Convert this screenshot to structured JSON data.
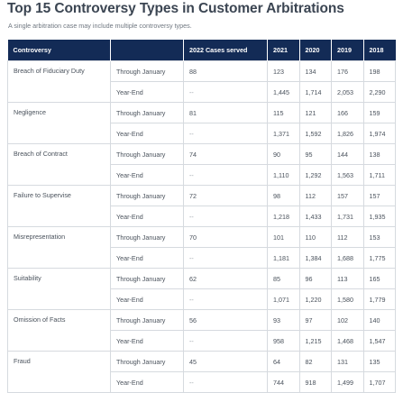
{
  "title": "Top 15 Controversy Types in Customer Arbitrations",
  "subtitle": "A single arbitration case may include multiple controversy types.",
  "table": {
    "headers": [
      "Controversy",
      "",
      "2022 Cases served",
      "2021",
      "2020",
      "2019",
      "2018"
    ],
    "rows": [
      {
        "controversy": "Breach of Fiduciary Duty",
        "periods": [
          {
            "label": "Through January",
            "cases": "88",
            "values": [
              "123",
              "134",
              "176",
              "198"
            ]
          },
          {
            "label": "Year-End",
            "cases": "--",
            "values": [
              "1,445",
              "1,714",
              "2,053",
              "2,290"
            ]
          }
        ]
      },
      {
        "controversy": "Negligence",
        "periods": [
          {
            "label": "Through January",
            "cases": "81",
            "values": [
              "115",
              "121",
              "166",
              "159"
            ]
          },
          {
            "label": "Year-End",
            "cases": "--",
            "values": [
              "1,371",
              "1,592",
              "1,826",
              "1,974"
            ]
          }
        ]
      },
      {
        "controversy": "Breach of Contract",
        "periods": [
          {
            "label": "Through January",
            "cases": "74",
            "values": [
              "90",
              "95",
              "144",
              "138"
            ]
          },
          {
            "label": "Year-End",
            "cases": "--",
            "values": [
              "1,110",
              "1,292",
              "1,563",
              "1,711"
            ]
          }
        ]
      },
      {
        "controversy": "Failure to Supervise",
        "periods": [
          {
            "label": "Through January",
            "cases": "72",
            "values": [
              "98",
              "112",
              "157",
              "157"
            ]
          },
          {
            "label": "Year-End",
            "cases": "--",
            "values": [
              "1,218",
              "1,433",
              "1,731",
              "1,935"
            ]
          }
        ]
      },
      {
        "controversy": "Misrepresentation",
        "periods": [
          {
            "label": "Through January",
            "cases": "70",
            "values": [
              "101",
              "110",
              "112",
              "153"
            ]
          },
          {
            "label": "Year-End",
            "cases": "--",
            "values": [
              "1,181",
              "1,384",
              "1,688",
              "1,775"
            ]
          }
        ]
      },
      {
        "controversy": "Suitability",
        "periods": [
          {
            "label": "Through January",
            "cases": "62",
            "values": [
              "85",
              "96",
              "113",
              "165"
            ]
          },
          {
            "label": "Year-End",
            "cases": "--",
            "values": [
              "1,071",
              "1,220",
              "1,580",
              "1,779"
            ]
          }
        ]
      },
      {
        "controversy": "Omission of Facts",
        "periods": [
          {
            "label": "Through January",
            "cases": "56",
            "values": [
              "93",
              "97",
              "102",
              "140"
            ]
          },
          {
            "label": "Year-End",
            "cases": "--",
            "values": [
              "958",
              "1,215",
              "1,468",
              "1,547"
            ]
          }
        ]
      },
      {
        "controversy": "Fraud",
        "periods": [
          {
            "label": "Through January",
            "cases": "45",
            "values": [
              "64",
              "82",
              "131",
              "135"
            ]
          },
          {
            "label": "Year-End",
            "cases": "--",
            "values": [
              "744",
              "918",
              "1,499",
              "1,707"
            ]
          }
        ]
      }
    ]
  },
  "colors": {
    "header_bg": "#132b56",
    "border": "#d6dadf"
  }
}
